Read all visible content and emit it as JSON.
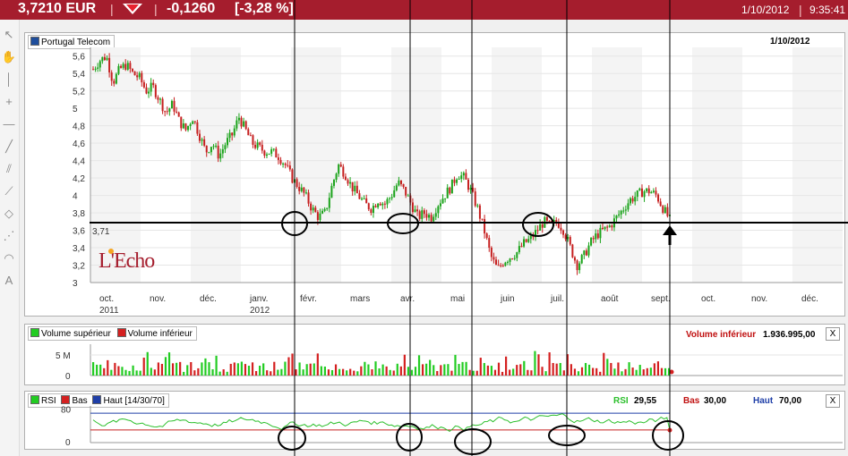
{
  "header": {
    "price": "3,7210 EUR",
    "sep1": "|",
    "sep2": "|",
    "change": "-0,1260",
    "change_pct": "[-3,28 %]",
    "date": "1/10/2012",
    "sep3": "|",
    "time": "9:35:41"
  },
  "toolbar": {
    "tools": [
      {
        "name": "pointer-icon",
        "glyph": "↖"
      },
      {
        "name": "hand-icon",
        "glyph": "✋"
      },
      {
        "name": "vertical-line-icon",
        "glyph": "│"
      },
      {
        "name": "crosshair-icon",
        "glyph": "+"
      },
      {
        "name": "horizontal-line-icon",
        "glyph": "—"
      },
      {
        "name": "trendline-icon",
        "glyph": "╱"
      },
      {
        "name": "parallel-lines-icon",
        "glyph": "⫽"
      },
      {
        "name": "segment-icon",
        "glyph": "⟋"
      },
      {
        "name": "rectangle-icon",
        "glyph": "◇"
      },
      {
        "name": "fan-icon",
        "glyph": "⋰"
      },
      {
        "name": "arc-icon",
        "glyph": "◠"
      },
      {
        "name": "text-icon",
        "glyph": "A"
      }
    ]
  },
  "price_panel": {
    "legend": "Portugal Telecom",
    "date": "1/10/2012",
    "logo": "L'Echo",
    "last_label": "3,71",
    "colors": {
      "up": "#1aa31a",
      "down": "#c62020",
      "legend_square": "#1f4e9c"
    }
  },
  "volume_panel": {
    "legend_up": "Volume supérieur",
    "legend_down": "Volume inférieur",
    "readout_label": "Volume inférieur",
    "readout_value": "1.936.995,00",
    "close": "X"
  },
  "rsi_panel": {
    "legend_rsi": "RSI",
    "legend_low": "Bas",
    "legend_high": "Haut",
    "params": "[14/30/70]",
    "rsi_label": "RSI",
    "rsi_value": "29,55",
    "low_label": "Bas",
    "low_value": "30,00",
    "high_label": "Haut",
    "high_value": "70,00",
    "close": "X",
    "colors": {
      "rsi": "#2bbf2b",
      "low": "#c62020",
      "high": "#1f3fa8"
    }
  },
  "chart_data": [
    {
      "type": "candlestick",
      "title": "Portugal Telecom",
      "ylim": [
        3,
        5.7
      ],
      "y_ticks": [
        "5,6",
        "5,4",
        "5,2",
        "5",
        "4,8",
        "4,6",
        "4,4",
        "4,2",
        "4",
        "3,8",
        "3,6",
        "3,4",
        "3,2",
        "3"
      ],
      "x_ticks": [
        {
          "label": "oct.",
          "sub": "2011"
        },
        {
          "label": "nov.",
          "sub": ""
        },
        {
          "label": "déc.",
          "sub": ""
        },
        {
          "label": "janv.",
          "sub": "2012"
        },
        {
          "label": "févr.",
          "sub": ""
        },
        {
          "label": "mars",
          "sub": ""
        },
        {
          "label": "avr.",
          "sub": ""
        },
        {
          "label": "mai",
          "sub": ""
        },
        {
          "label": "juin",
          "sub": ""
        },
        {
          "label": "juil.",
          "sub": ""
        },
        {
          "label": "août",
          "sub": ""
        },
        {
          "label": "sept.",
          "sub": ""
        },
        {
          "label": "oct.",
          "sub": ""
        },
        {
          "label": "nov.",
          "sub": ""
        },
        {
          "label": "déc.",
          "sub": ""
        }
      ],
      "close_path": [
        5.45,
        5.55,
        5.6,
        5.3,
        5.45,
        5.5,
        5.4,
        5.35,
        5.2,
        5.25,
        5.1,
        4.95,
        5.05,
        4.85,
        4.75,
        4.9,
        4.7,
        4.5,
        4.6,
        4.45,
        4.6,
        4.7,
        4.9,
        4.75,
        4.6,
        4.55,
        4.5,
        4.5,
        4.45,
        4.35,
        4.2,
        4.1,
        4.0,
        3.85,
        3.75,
        3.8,
        4.1,
        4.35,
        4.25,
        4.1,
        4.0,
        3.9,
        3.85,
        3.95,
        3.9,
        4.0,
        4.15,
        4.05,
        3.9,
        3.75,
        3.8,
        3.75,
        3.9,
        4.0,
        4.1,
        4.25,
        4.2,
        4.05,
        3.85,
        3.6,
        3.3,
        3.15,
        3.25,
        3.3,
        3.35,
        3.45,
        3.5,
        3.6,
        3.7,
        3.65,
        3.7,
        3.6,
        3.4,
        3.2,
        3.3,
        3.45,
        3.55,
        3.6,
        3.65,
        3.75,
        3.85,
        3.95,
        4.0,
        4.05,
        4.05,
        4.0,
        3.85,
        3.72
      ],
      "last_value": 3.71,
      "reference_line": 3.71
    },
    {
      "type": "bar",
      "title": "Volume",
      "y_ticks": [
        "5 M",
        "0"
      ],
      "bars": 160
    },
    {
      "type": "line",
      "title": "RSI",
      "ylim": [
        0,
        100
      ],
      "y_ticks": [
        "80",
        "0"
      ],
      "low": 30,
      "high": 70,
      "last_value": 29.55
    }
  ]
}
